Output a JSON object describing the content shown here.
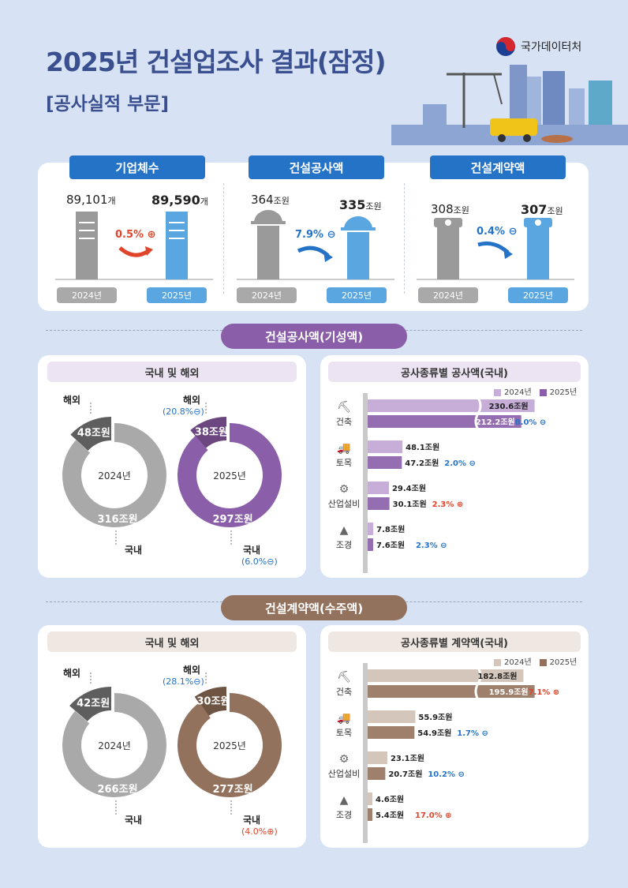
{
  "header": {
    "title": "2025년 건설업조사 결과(잠정)",
    "subtitle": "[공사실적 부문]",
    "agency": "국가데이터처"
  },
  "summary": {
    "firms": {
      "label": "기업체수",
      "v2024": "89,101",
      "u2024": "개",
      "v2025": "89,590",
      "u2025": "개",
      "pct": "0.5%",
      "dir": "up"
    },
    "construction": {
      "label": "건설공사액",
      "v2024": "364",
      "u2024": "조원",
      "v2025": "335",
      "u2025": "조원",
      "pct": "7.9%",
      "dir": "down"
    },
    "contract": {
      "label": "건설계약액",
      "v2024": "308",
      "u2024": "조원",
      "v2025": "307",
      "u2025": "조원",
      "pct": "0.4%",
      "dir": "down"
    },
    "year2024": "2024년",
    "year2025": "2025년"
  },
  "section1": {
    "title": "건설공사액(기성액)",
    "donut_title": "국내 및 해외",
    "bar_title": "공사종류별 공사액(국내)",
    "overseas_label": "해외",
    "domestic_label": "국내",
    "overseas_pct": "(20.8%",
    "domestic_pct": "(6.0%",
    "pct_close": ")",
    "center2024": "2024년",
    "center2025": "2025년",
    "unit": "조원",
    "legend2024": "2024년",
    "legend2025": "2025년"
  },
  "section2": {
    "title": "건설계약액(수주액)",
    "donut_title": "국내 및 해외",
    "bar_title": "공사종류별 계약액(국내)",
    "overseas_label": "해외",
    "domestic_label": "국내",
    "overseas_pct": "(28.1%",
    "domestic_pct": "(4.0%",
    "pct_close": ")",
    "center2024": "2024년",
    "center2025": "2025년",
    "unit": "조원",
    "legend2024": "2024년",
    "legend2025": "2025년"
  },
  "chart_data": [
    {
      "type": "bar",
      "title": "",
      "categories": [
        "2024년",
        "2025년"
      ],
      "series": [
        {
          "name": "기업체수",
          "values": [
            89101,
            89590
          ]
        }
      ]
    },
    {
      "type": "bar",
      "title": "",
      "categories": [
        "2024년",
        "2025년"
      ],
      "series": [
        {
          "name": "건설공사액",
          "values": [
            364,
            335
          ]
        }
      ]
    },
    {
      "type": "bar",
      "title": "",
      "categories": [
        "2024년",
        "2025년"
      ],
      "series": [
        {
          "name": "건설계약액",
          "values": [
            308,
            307
          ]
        }
      ]
    },
    {
      "type": "pie",
      "title": "국내 및 해외",
      "series": [
        {
          "name": "2024년",
          "labels": [
            "해외",
            "국내"
          ],
          "values": [
            48,
            316
          ]
        },
        {
          "name": "2025년",
          "labels": [
            "해외",
            "국내"
          ],
          "values": [
            38,
            297
          ]
        }
      ]
    },
    {
      "type": "bar",
      "title": "공사종류별 공사액(국내)",
      "categories": [
        "건축",
        "토목",
        "산업설비",
        "조경"
      ],
      "series": [
        {
          "name": "2024년",
          "values": [
            230.6,
            48.1,
            29.4,
            7.8
          ]
        },
        {
          "name": "2025년",
          "values": [
            212.2,
            47.2,
            30.1,
            7.6
          ]
        }
      ],
      "changes": [
        "8.0%",
        "2.0%",
        "2.3%",
        "2.3%"
      ],
      "change_dirs": [
        "down",
        "down",
        "up",
        "down"
      ]
    },
    {
      "type": "pie",
      "title": "국내 및 해외",
      "series": [
        {
          "name": "2024년",
          "labels": [
            "해외",
            "국내"
          ],
          "values": [
            42,
            266
          ]
        },
        {
          "name": "2025년",
          "labels": [
            "해외",
            "국내"
          ],
          "values": [
            30,
            277
          ]
        }
      ]
    },
    {
      "type": "bar",
      "title": "공사종류별 계약액(국내)",
      "categories": [
        "건축",
        "토목",
        "산업설비",
        "조경"
      ],
      "series": [
        {
          "name": "2024년",
          "values": [
            182.8,
            55.9,
            23.1,
            4.6
          ]
        },
        {
          "name": "2025년",
          "values": [
            195.9,
            54.9,
            20.7,
            5.4
          ]
        }
      ],
      "changes": [
        "7.1%",
        "1.7%",
        "10.2%",
        "17.0%"
      ],
      "change_dirs": [
        "up",
        "down",
        "down",
        "up"
      ]
    }
  ],
  "colors": {
    "blue": "#2573c7",
    "purple": "#8a5ea8",
    "purple_light": "#c6aed8",
    "brown": "#93725d",
    "brown_light": "#d4c6bb",
    "gray": "#a9a9a9",
    "dark": "#5e5e5e"
  },
  "icons": [
    "excavator-icon",
    "mixer-truck-icon",
    "gear-icon",
    "tree-icon",
    "arrow-up-icon",
    "arrow-down-icon",
    "taegeuk-logo-icon"
  ]
}
